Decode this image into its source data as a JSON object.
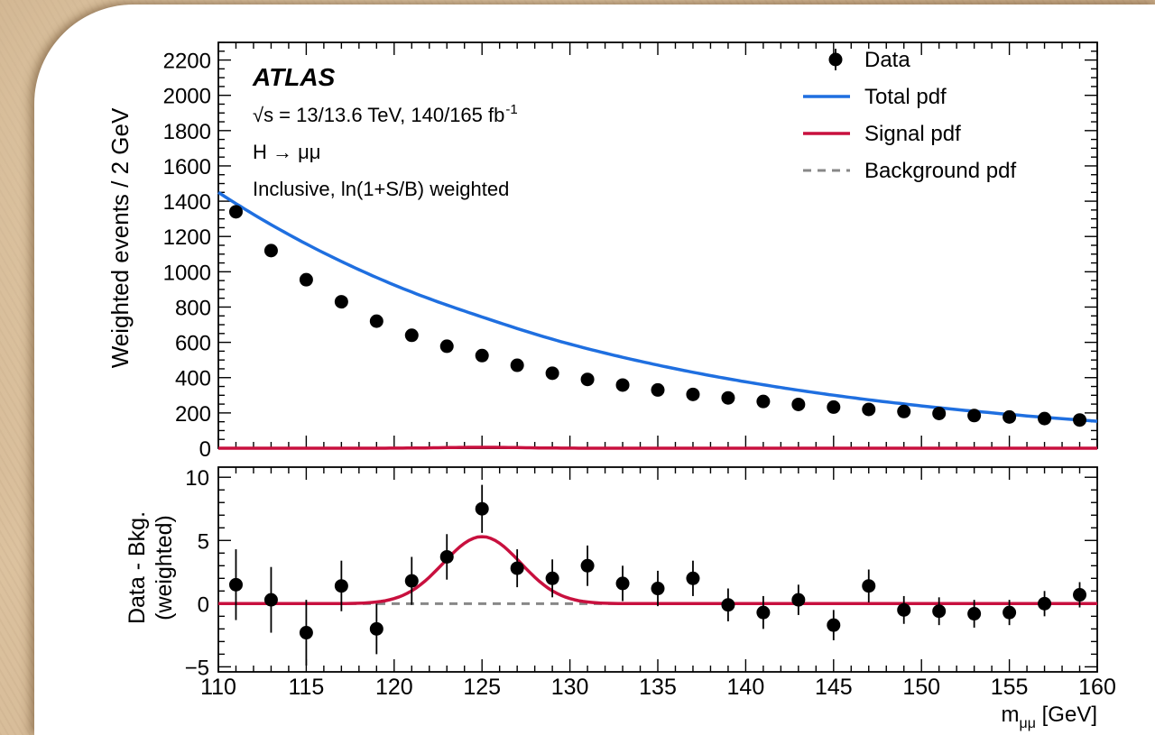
{
  "chart_data": {
    "type": "scatter",
    "top_panel": {
      "ylabel": "Weighted events / 2 GeV",
      "ylim": [
        0,
        2300
      ],
      "yticks": [
        0,
        200,
        400,
        600,
        800,
        1000,
        1200,
        1400,
        1600,
        1800,
        2000,
        2200
      ],
      "annotations": {
        "experiment": "ATLAS",
        "energy": "√s = 13/13.6 TeV, 140/165 fb",
        "energy_sup": "-1",
        "process": "H → μμ",
        "category": "Inclusive, ln(1+S/B) weighted"
      },
      "legend": {
        "placement": "top-right",
        "entries": [
          "Data",
          "Total pdf",
          "Signal pdf",
          "Background pdf"
        ]
      },
      "data": {
        "x": [
          111,
          113,
          115,
          117,
          119,
          121,
          123,
          125,
          127,
          129,
          131,
          133,
          135,
          137,
          139,
          141,
          143,
          145,
          147,
          149,
          151,
          153,
          155,
          157,
          159
        ],
        "y": [
          1340,
          1120,
          955,
          830,
          720,
          640,
          578,
          525,
          470,
          425,
          390,
          358,
          330,
          305,
          285,
          265,
          248,
          233,
          220,
          208,
          197,
          185,
          177,
          168,
          160
        ]
      }
    },
    "bottom_panel": {
      "ylabel_line1": "Data - Bkg.",
      "ylabel_line2": "(weighted)",
      "ylim": [
        -5.4,
        10.8
      ],
      "yticks": [
        -5,
        0,
        5,
        10
      ],
      "ytick_labels": [
        "−5",
        "0",
        "5",
        "10"
      ],
      "data": {
        "x": [
          111,
          113,
          115,
          117,
          119,
          121,
          123,
          125,
          127,
          129,
          131,
          133,
          135,
          137,
          139,
          141,
          143,
          145,
          147,
          149,
          151,
          153,
          155,
          157,
          159
        ],
        "y": [
          1.5,
          0.3,
          -2.3,
          1.4,
          -2.0,
          1.8,
          3.7,
          7.5,
          2.8,
          2.0,
          3.0,
          1.6,
          1.2,
          2.0,
          -0.1,
          -0.7,
          0.3,
          -1.7,
          1.4,
          -0.5,
          -0.6,
          -0.8,
          -0.7,
          0.0,
          0.7
        ],
        "err": [
          2.8,
          2.6,
          2.6,
          2.0,
          2.0,
          1.9,
          1.8,
          1.9,
          1.5,
          1.5,
          1.6,
          1.4,
          1.4,
          1.4,
          1.3,
          1.3,
          1.2,
          1.2,
          1.3,
          1.1,
          1.1,
          1.1,
          1.0,
          1.0,
          1.0
        ]
      },
      "signal_peak": 5.3,
      "signal_mean": 125,
      "signal_sigma": 2.2
    },
    "total_pdf": {
      "value_at_110": 1450,
      "value_at_160": 153
    },
    "xlim": [
      110,
      160
    ],
    "xticks": [
      110,
      115,
      120,
      125,
      130,
      135,
      140,
      145,
      150,
      155,
      160
    ],
    "xlabel_main": "m",
    "xlabel_sub": "μμ",
    "xlabel_unit": " [GeV]",
    "colors": {
      "total": "#1f6fe0",
      "signal": "#c8103e",
      "background": "#888888",
      "data": "#000000"
    }
  }
}
